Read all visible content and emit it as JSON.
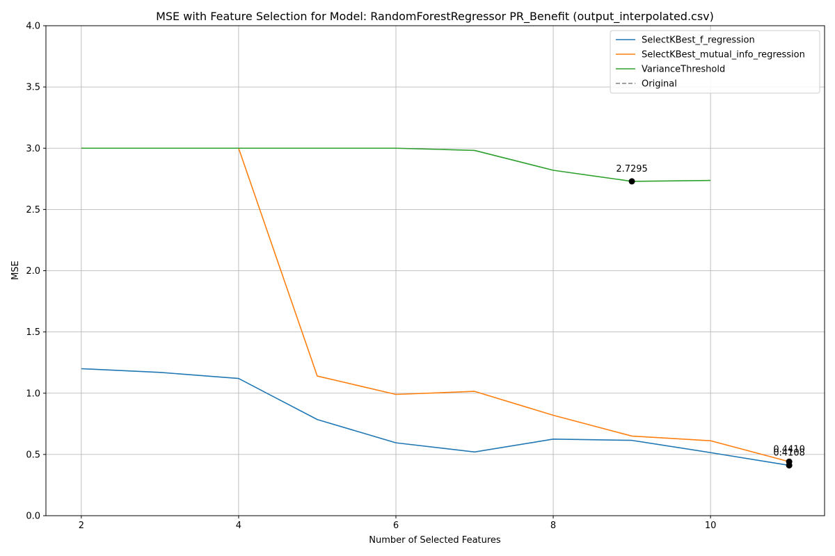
{
  "chart_data": {
    "type": "line",
    "title": "MSE with Feature Selection for Model: RandomForestRegressor PR_Benefit (output_interpolated.csv)",
    "xlabel": "Number of Selected Features",
    "ylabel": "MSE",
    "xlim": [
      1.55,
      11.45
    ],
    "ylim": [
      0,
      4
    ],
    "xticks": [
      2,
      4,
      6,
      8,
      10
    ],
    "yticks": [
      0.0,
      0.5,
      1.0,
      1.5,
      2.0,
      2.5,
      3.0,
      3.5,
      4.0
    ],
    "grid": true,
    "legend_position": "top-right",
    "series": [
      {
        "name": "SelectKBest_f_regression",
        "color": "#1f77b4",
        "style": "solid",
        "x": [
          2,
          3,
          4,
          5,
          6,
          7,
          8,
          9,
          10,
          11
        ],
        "y": [
          1.2,
          1.17,
          1.12,
          0.785,
          0.595,
          0.52,
          0.625,
          0.615,
          0.515,
          0.4108
        ]
      },
      {
        "name": "SelectKBest_mutual_info_regression",
        "color": "#ff7f0e",
        "style": "solid",
        "x": [
          2,
          3,
          4,
          5,
          6,
          7,
          8,
          9,
          10,
          11
        ],
        "y": [
          3.0,
          3.0,
          3.0,
          1.14,
          0.99,
          1.015,
          0.82,
          0.65,
          0.612,
          0.441
        ]
      },
      {
        "name": "VarianceThreshold",
        "color": "#2ca02c",
        "style": "solid",
        "x": [
          2,
          3,
          4,
          5,
          6,
          7,
          8,
          9,
          10
        ],
        "y": [
          3.0,
          3.0,
          3.0,
          3.0,
          3.0,
          2.982,
          2.82,
          2.7295,
          2.737
        ]
      },
      {
        "name": "Original",
        "color": "#808080",
        "style": "dashed",
        "x": [],
        "y": []
      }
    ],
    "annotations": [
      {
        "text": "2.7295",
        "x": 9,
        "y": 2.7295
      },
      {
        "text": "0.4410",
        "x": 11,
        "y": 0.441
      },
      {
        "text": "0.4108",
        "x": 11,
        "y": 0.4108
      }
    ]
  }
}
